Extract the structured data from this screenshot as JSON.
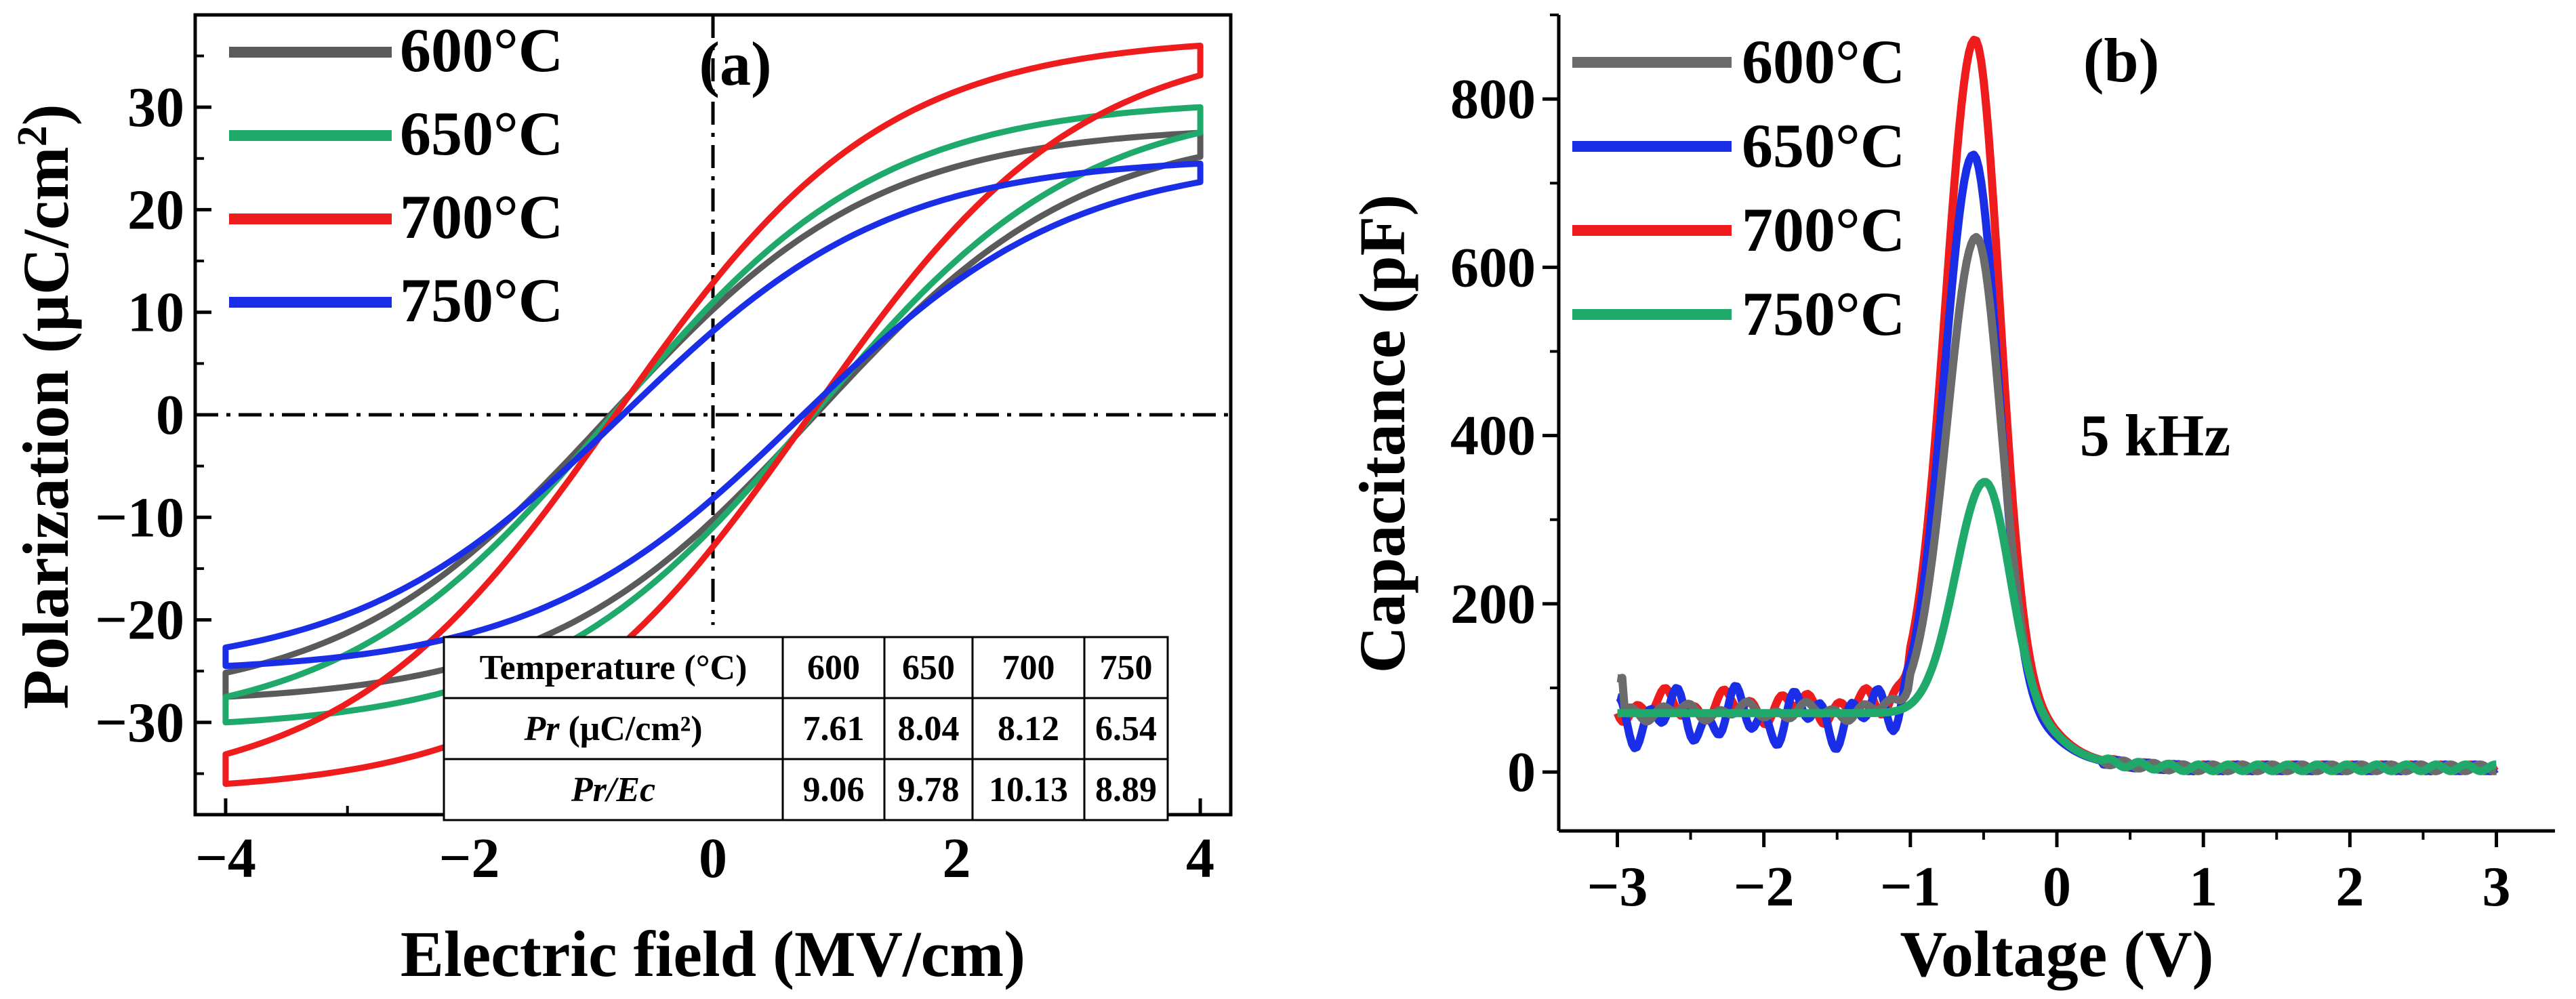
{
  "chart_data": [
    {
      "type": "line",
      "panel_label": "(a)",
      "xlabel": "Electric field (MV/cm)",
      "ylabel": "Polarization (μC/cm²)",
      "xlim": [
        -4.25,
        4.25
      ],
      "ylim": [
        -39,
        39
      ],
      "xticks": [
        -4,
        -2,
        0,
        2,
        4
      ],
      "xtick_labels": [
        "−4",
        "−2",
        "0",
        "2",
        "4"
      ],
      "yticks": [
        -30,
        -20,
        -10,
        0,
        10,
        20,
        30
      ],
      "ytick_labels": [
        "−30",
        "−20",
        "−10",
        "0",
        "10",
        "20",
        "30"
      ],
      "legend": [
        "600°C",
        "650°C",
        "700°C",
        "750°C"
      ],
      "colors": [
        "#5a5a5a",
        "#1faa6b",
        "#ee1c1c",
        "#1a2ee8"
      ],
      "loops": [
        {
          "name": "600°C",
          "Ps": 27.5,
          "Ec": 0.84,
          "Pr": 7.61,
          "Emax": 4.0
        },
        {
          "name": "650°C",
          "Ps": 30.0,
          "Ec": 0.82,
          "Pr": 8.04,
          "Emax": 4.0
        },
        {
          "name": "700°C",
          "Ps": 36.0,
          "Ec": 0.8,
          "Pr": 8.12,
          "Emax": 4.0
        },
        {
          "name": "750°C",
          "Ps": 24.5,
          "Ec": 0.74,
          "Pr": 6.54,
          "Emax": 4.0
        }
      ],
      "table": {
        "header": [
          "Temperature (°C)",
          "600",
          "650",
          "700",
          "750"
        ],
        "rows": [
          {
            "label_it": "Pr",
            "label_rest": " (μC/cm²)",
            "values": [
              "7.61",
              "8.04",
              "8.12",
              "6.54"
            ]
          },
          {
            "label_it": "Pr/Ec",
            "label_rest": "",
            "values": [
              "9.06",
              "9.78",
              "10.13",
              "8.89"
            ]
          }
        ]
      }
    },
    {
      "type": "line",
      "panel_label": "(b)",
      "annotation": "5 kHz",
      "xlabel": "Voltage (V)",
      "ylabel": "Capacitance (pF)",
      "xlim": [
        -3.4,
        3.4
      ],
      "ylim": [
        -70,
        900
      ],
      "xticks": [
        -3,
        -2,
        -1,
        0,
        1,
        2,
        3
      ],
      "xtick_labels": [
        "−3",
        "−2",
        "−1",
        "0",
        "1",
        "2",
        "3"
      ],
      "yticks": [
        0,
        200,
        400,
        600,
        800
      ],
      "ytick_labels": [
        "0",
        "200",
        "400",
        "600",
        "800"
      ],
      "legend": [
        "600°C",
        "650°C",
        "700°C",
        "750°C"
      ],
      "colors": [
        "#6b6b6b",
        "#1a2ee8",
        "#ee1c1c",
        "#1faa6b"
      ],
      "series": [
        {
          "name": "600°C",
          "peak_v": -0.55,
          "peak_c": 615,
          "base_left": 72,
          "noise": 12
        },
        {
          "name": "650°C",
          "peak_v": -0.57,
          "peak_c": 715,
          "base_left": 65,
          "noise": 38
        },
        {
          "name": "700°C",
          "peak_v": -0.56,
          "peak_c": 848,
          "base_left": 78,
          "noise": 22
        },
        {
          "name": "750°C",
          "peak_v": -0.49,
          "peak_c": 325,
          "base_left": 70,
          "noise": 0
        }
      ]
    }
  ]
}
